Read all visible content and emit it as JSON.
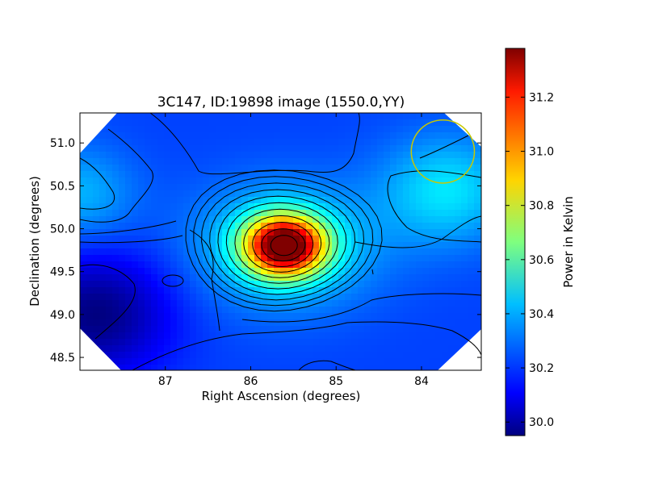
{
  "chart_data": {
    "type": "heatmap",
    "title": "3C147, ID:19898 image (1550.0,YY)",
    "xlabel": "Right Ascension (degrees)",
    "ylabel": "Declination (degrees)",
    "xlim": [
      88.0,
      83.3
    ],
    "ylim": [
      48.35,
      51.35
    ],
    "x_ticks": [
      87,
      86,
      85,
      84
    ],
    "y_ticks": [
      48.5,
      49.0,
      49.5,
      50.0,
      50.5,
      51.0
    ],
    "x_tick_labels": [
      "87",
      "86",
      "85",
      "84"
    ],
    "y_tick_labels": [
      "48.5",
      "49.0",
      "49.5",
      "50.0",
      "50.5",
      "51.0"
    ],
    "colormap": "jet",
    "colorbar": {
      "label": "Power in Kelvin",
      "range": [
        29.95,
        31.38
      ],
      "ticks": [
        30.0,
        30.2,
        30.4,
        30.6,
        30.8,
        31.0,
        31.2
      ],
      "tick_labels": [
        "30.0",
        "30.2",
        "30.4",
        "30.6",
        "30.8",
        "31.0",
        "31.2"
      ]
    },
    "field": {
      "background": 30.22,
      "peak": {
        "ra": 85.6,
        "dec": 49.8,
        "value": 31.38
      },
      "bright_region": {
        "ra": 83.7,
        "dec": 50.45,
        "value": 30.45
      },
      "left_region": {
        "ra": 88.0,
        "dec": 50.4,
        "value": 30.38
      },
      "dark_region": {
        "ra": 87.8,
        "dec": 49.0,
        "value": 29.95
      }
    },
    "beam_marker": {
      "ra": 83.75,
      "dec": 50.9,
      "radius_deg": 0.37,
      "color": "#c8c800"
    },
    "grid": false,
    "legend": "none"
  }
}
